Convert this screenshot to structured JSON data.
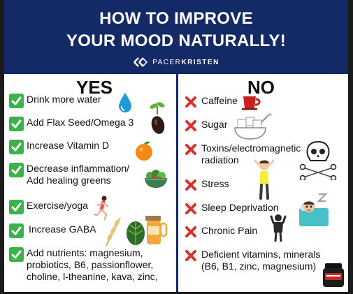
{
  "header": {
    "title_line1": "HOW TO IMPROVE",
    "title_line2": "YOUR MOOD NATURALLY!",
    "brand_light": "PACER",
    "brand_bold": "KRISTEN",
    "background": "#142a66"
  },
  "yes": {
    "title": "YES",
    "items": [
      {
        "line1": "Drink more water"
      },
      {
        "line1": "Add Flax Seed/Omega 3"
      },
      {
        "line1": "Increase Vitamin D"
      },
      {
        "line1": "Decrease inflammation/",
        "line2": "Add healing greens"
      },
      {
        "line1": "Exercise/yoga"
      },
      {
        "line1": "Increase GABA"
      },
      {
        "line1": "Add nutrients: magnesium,",
        "line2": "probiotics, B6, passionflower,",
        "line3": "choline, l-theanine, kava, zinc,"
      }
    ]
  },
  "no": {
    "title": "NO",
    "items": [
      {
        "line1": "Caffeine"
      },
      {
        "line1": "Sugar"
      },
      {
        "line1": "Toxins/electromagnetic",
        "line2": "radiation"
      },
      {
        "line1": "Stress"
      },
      {
        "line1": "Sleep Deprivation"
      },
      {
        "line1": "Chronic Pain"
      },
      {
        "line1": "Deficient vitamins, minerals",
        "line2": "(B6, B1, zinc, magnesium)"
      }
    ]
  },
  "colors": {
    "check": "#3bb34a",
    "cross": "#d6312b",
    "navy": "#142a66"
  },
  "icons": [
    "water-drop-icon",
    "flax-seed-icon",
    "orange-icon",
    "salad-bowl-icon",
    "runner-icon",
    "gaba-herbs-icon",
    "coffee-cup-icon",
    "sugar-cubes-icon",
    "skull-crossbones-icon",
    "stressed-person-icon",
    "sleepless-person-icon",
    "pain-person-icon",
    "supplement-jar-icon"
  ]
}
